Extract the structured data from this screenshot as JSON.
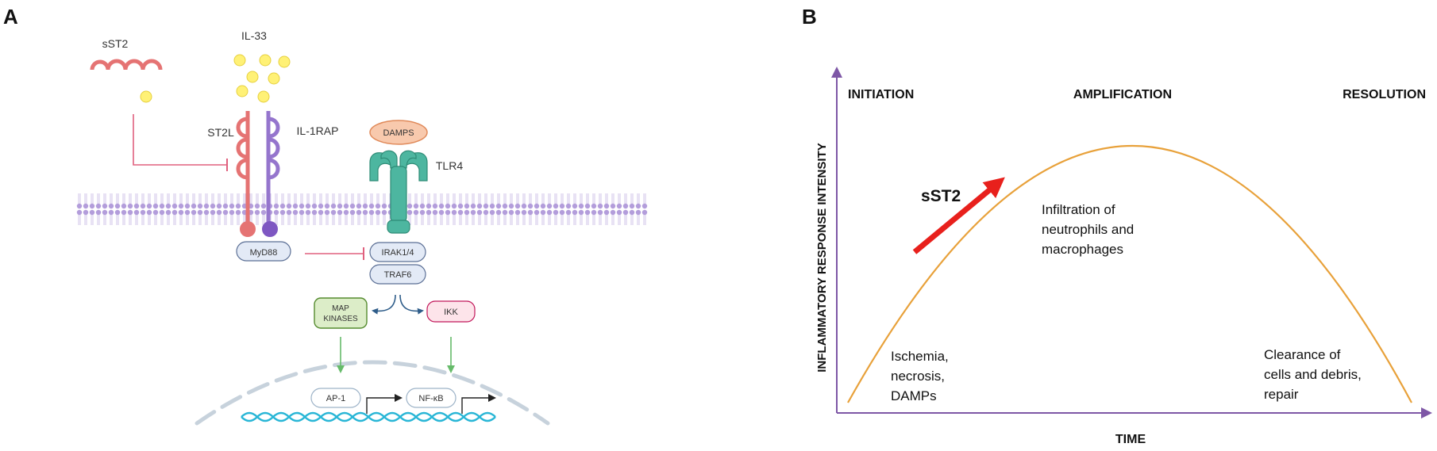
{
  "panel_a": {
    "panel_letter": "A",
    "sst2_label": "sST2",
    "il33_label": "IL-33",
    "st2l_label": "ST2L",
    "il1rap_label": "IL-1RAP",
    "damps_label": "DAMPS",
    "tlr4_label": "TLR4",
    "myd88_label": "MyD88",
    "irak_label": "IRAK1/4",
    "traf6_label": "TRAF6",
    "map_kinases_line1": "MAP",
    "map_kinases_line2": "KINASES",
    "ikk_label": "IKK",
    "ap1_label": "AP-1",
    "nfkb_label": "NF-κB",
    "colors": {
      "st2": "#e57373",
      "il1rap": "#9575cd",
      "tlr4": "#4db6a0",
      "il33_dot": "#fff176",
      "membrane": "#b39ddb",
      "dna": "#29b6d6",
      "green_arrow": "#66bb6a",
      "inhibit": "#e0607e"
    }
  },
  "panel_b": {
    "panel_letter": "B",
    "phase_initiation": "INITIATION",
    "phase_amplification": "AMPLIFICATION",
    "phase_resolution": "RESOLUTION",
    "y_axis_label": "INFLAMMATORY RESPONSE INTENSITY",
    "x_axis_label": "TIME",
    "sst2_label": "sST2",
    "early_note": [
      "Ischemia,",
      "necrosis,",
      "DAMPs"
    ],
    "peak_note": [
      "Infiltration of",
      "neutrophils and",
      "macrophages"
    ],
    "late_note": [
      "Clearance of",
      "cells and debris,",
      "repair"
    ],
    "colors": {
      "axis": "#7e57a6",
      "curve": "#e8a13a",
      "arrow": "#e8201c"
    }
  }
}
